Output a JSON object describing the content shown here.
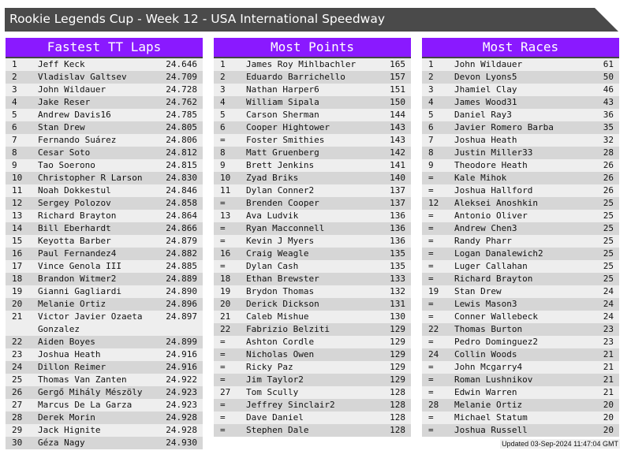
{
  "title": "Rookie Legends Cup - Week 12 - USA International Speedway",
  "colors": {
    "header": "#8a19ff",
    "title_bar": "#4a4a4a",
    "row_light": "#eeeeee",
    "row_dark": "#d6d6d6"
  },
  "panels": [
    {
      "title": "Fastest TT Laps",
      "rows": [
        [
          "1",
          "Jeff Keck",
          "24.646"
        ],
        [
          "2",
          "Vladislav Galtsev",
          "24.709"
        ],
        [
          "3",
          "John Wildauer",
          "24.728"
        ],
        [
          "4",
          "Jake Reser",
          "24.762"
        ],
        [
          "5",
          "Andrew Davis16",
          "24.785"
        ],
        [
          "6",
          "Stan Drew",
          "24.805"
        ],
        [
          "7",
          "Fernando Suárez",
          "24.806"
        ],
        [
          "8",
          "Cesar Soto",
          "24.812"
        ],
        [
          "9",
          "Tao Soerono",
          "24.815"
        ],
        [
          "10",
          "Christopher R Larson",
          "24.830"
        ],
        [
          "11",
          "Noah Dokkestul",
          "24.846"
        ],
        [
          "12",
          "Sergey Polozov",
          "24.858"
        ],
        [
          "13",
          "Richard Brayton",
          "24.864"
        ],
        [
          "14",
          "Bill Eberhardt",
          "24.866"
        ],
        [
          "15",
          "Keyotta Barber",
          "24.879"
        ],
        [
          "16",
          "Paul Fernandez4",
          "24.882"
        ],
        [
          "17",
          "Vince Genola III",
          "24.885"
        ],
        [
          "18",
          "Brandon Witmer2",
          "24.889"
        ],
        [
          "19",
          "Gianni Gagliardi",
          "24.890"
        ],
        [
          "20",
          "Melanie Ortiz",
          "24.896"
        ],
        [
          "21",
          "Victor Javier Ozaeta Gonzalez",
          "24.897"
        ],
        [
          "22",
          "Aiden Boyes",
          "24.899"
        ],
        [
          "23",
          "Joshua Heath",
          "24.916"
        ],
        [
          "24",
          "Dillon Reimer",
          "24.916"
        ],
        [
          "25",
          "Thomas Van Zanten",
          "24.922"
        ],
        [
          "26",
          "Gergő Mihály Mészöly",
          "24.923"
        ],
        [
          "27",
          "Marcus De La Garza",
          "24.923"
        ],
        [
          "28",
          "Derek Morin",
          "24.928"
        ],
        [
          "29",
          "Jack Hignite",
          "24.928"
        ],
        [
          "30",
          "Géza Nagy",
          "24.930"
        ]
      ]
    },
    {
      "title": "Most Points",
      "rows": [
        [
          "1",
          "James Roy Mihlbachler",
          "165"
        ],
        [
          "2",
          "Eduardo Barrichello",
          "157"
        ],
        [
          "3",
          "Nathan Harper6",
          "151"
        ],
        [
          "4",
          "William Sipala",
          "150"
        ],
        [
          "5",
          "Carson Sherman",
          "144"
        ],
        [
          "6",
          "Cooper Hightower",
          "143"
        ],
        [
          "=",
          "Foster Smithies",
          "143"
        ],
        [
          "8",
          "Matt Gruenberg",
          "142"
        ],
        [
          "9",
          "Brett Jenkins",
          "141"
        ],
        [
          "10",
          "Zyad Briks",
          "140"
        ],
        [
          "11",
          "Dylan Conner2",
          "137"
        ],
        [
          "=",
          "Brenden Cooper",
          "137"
        ],
        [
          "13",
          "Ava Ludvik",
          "136"
        ],
        [
          "=",
          "Ryan Macconnell",
          "136"
        ],
        [
          "=",
          "Kevin J Myers",
          "136"
        ],
        [
          "16",
          "Craig Weagle",
          "135"
        ],
        [
          "=",
          "Dylan Cash",
          "135"
        ],
        [
          "18",
          "Ethan Brewster",
          "133"
        ],
        [
          "19",
          "Brydon Thomas",
          "132"
        ],
        [
          "20",
          "Derick Dickson",
          "131"
        ],
        [
          "21",
          "Caleb Mishue",
          "130"
        ],
        [
          "22",
          "Fabrizio Belziti",
          "129"
        ],
        [
          "=",
          "Ashton Cordle",
          "129"
        ],
        [
          "=",
          "Nicholas Owen",
          "129"
        ],
        [
          "=",
          "Ricky Paz",
          "129"
        ],
        [
          "=",
          "Jim Taylor2",
          "129"
        ],
        [
          "27",
          "Tom Scully",
          "128"
        ],
        [
          "=",
          "Jeffrey Sinclair2",
          "128"
        ],
        [
          "=",
          "Dave Daniel",
          "128"
        ],
        [
          "=",
          "Stephen Dale",
          "128"
        ]
      ]
    },
    {
      "title": "Most Races",
      "rows": [
        [
          "1",
          "John Wildauer",
          "61"
        ],
        [
          "2",
          "Devon Lyons5",
          "50"
        ],
        [
          "3",
          "Jhamiel Clay",
          "46"
        ],
        [
          "4",
          "James Wood31",
          "43"
        ],
        [
          "5",
          "Daniel Ray3",
          "36"
        ],
        [
          "6",
          "Javier Romero Barba",
          "35"
        ],
        [
          "7",
          "Joshua Heath",
          "32"
        ],
        [
          "8",
          "Justin Miller33",
          "28"
        ],
        [
          "9",
          "Theodore Heath",
          "26"
        ],
        [
          "=",
          "Kale Mihok",
          "26"
        ],
        [
          "=",
          "Joshua Hallford",
          "26"
        ],
        [
          "12",
          "Aleksei Anoshkin",
          "25"
        ],
        [
          "=",
          "Antonio Oliver",
          "25"
        ],
        [
          "=",
          "Andrew Chen3",
          "25"
        ],
        [
          "=",
          "Randy Pharr",
          "25"
        ],
        [
          "=",
          "Logan Danalewich2",
          "25"
        ],
        [
          "=",
          "Luger Callahan",
          "25"
        ],
        [
          "=",
          "Richard Brayton",
          "25"
        ],
        [
          "19",
          "Stan Drew",
          "24"
        ],
        [
          "=",
          "Lewis Mason3",
          "24"
        ],
        [
          "=",
          "Conner Wallebeck",
          "24"
        ],
        [
          "22",
          "Thomas Burton",
          "23"
        ],
        [
          "=",
          "Pedro Dominguez2",
          "23"
        ],
        [
          "24",
          "Collin Woods",
          "21"
        ],
        [
          "=",
          "John Mcgarry4",
          "21"
        ],
        [
          "=",
          "Roman Lushnikov",
          "21"
        ],
        [
          "=",
          "Edwin Warren",
          "21"
        ],
        [
          "28",
          "Melanie Ortiz",
          "20"
        ],
        [
          "=",
          "Michael Statum",
          "20"
        ],
        [
          "=",
          "Joshua Russell",
          "20"
        ]
      ]
    }
  ],
  "updated": "Updated 03-Sep-2024 11:47:04 GMT"
}
